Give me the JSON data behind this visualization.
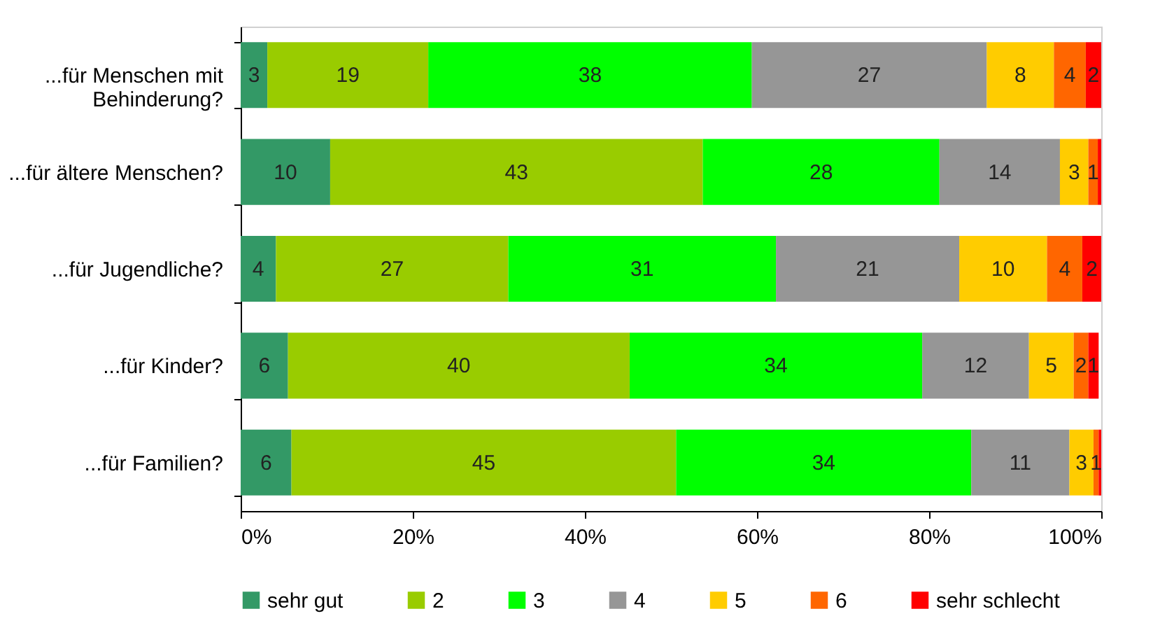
{
  "chart_data": {
    "type": "bar",
    "orientation": "horizontal",
    "stacked": true,
    "legend": "bottom",
    "grid": false,
    "categories": [
      "...für Menschen mit Behinderung?",
      "...für ältere Menschen?",
      "...für Jugendliche?",
      "...für Kinder?",
      "...für Familien?"
    ],
    "xlim": [
      0,
      100
    ],
    "xticks": [
      {
        "value": 0,
        "label": "0%"
      },
      {
        "value": 20,
        "label": "20%"
      },
      {
        "value": 40,
        "label": "40%"
      },
      {
        "value": 60,
        "label": "60%"
      },
      {
        "value": 80,
        "label": "80%"
      },
      {
        "value": 100,
        "label": "100%"
      }
    ],
    "series": [
      {
        "name": "sehr gut",
        "color": "#339966",
        "values": [
          3.1,
          10.4,
          4.1,
          5.5,
          5.9
        ],
        "value_labels": [
          "3",
          "10",
          "4",
          "6",
          "6"
        ]
      },
      {
        "name": "2",
        "color": "#99cc00",
        "values": [
          18.7,
          43.3,
          27.0,
          39.7,
          44.7
        ],
        "value_labels": [
          "19",
          "43",
          "27",
          "40",
          "45"
        ]
      },
      {
        "name": "3",
        "color": "#00ff00",
        "values": [
          37.6,
          27.5,
          31.1,
          34.0,
          34.3
        ],
        "value_labels": [
          "38",
          "28",
          "31",
          "34",
          "34"
        ]
      },
      {
        "name": "4",
        "color": "#969696",
        "values": [
          27.3,
          14.0,
          21.3,
          12.4,
          11.4
        ],
        "value_labels": [
          "27",
          "14",
          "21",
          "12",
          "11"
        ]
      },
      {
        "name": "5",
        "color": "#ffcc00",
        "values": [
          7.8,
          3.3,
          10.2,
          5.2,
          2.8
        ],
        "value_labels": [
          "8",
          "3",
          "10",
          "5",
          "3"
        ]
      },
      {
        "name": "6",
        "color": "#ff6600",
        "values": [
          3.7,
          1.1,
          4.1,
          1.7,
          0.6
        ],
        "value_labels": [
          "4",
          "1",
          "4",
          "2",
          "1"
        ]
      },
      {
        "name": "sehr schlecht",
        "color": "#ff0000",
        "values": [
          1.8,
          0.4,
          2.2,
          1.2,
          0.3
        ],
        "value_labels": [
          "2",
          null,
          "2",
          "1",
          null
        ]
      }
    ]
  }
}
